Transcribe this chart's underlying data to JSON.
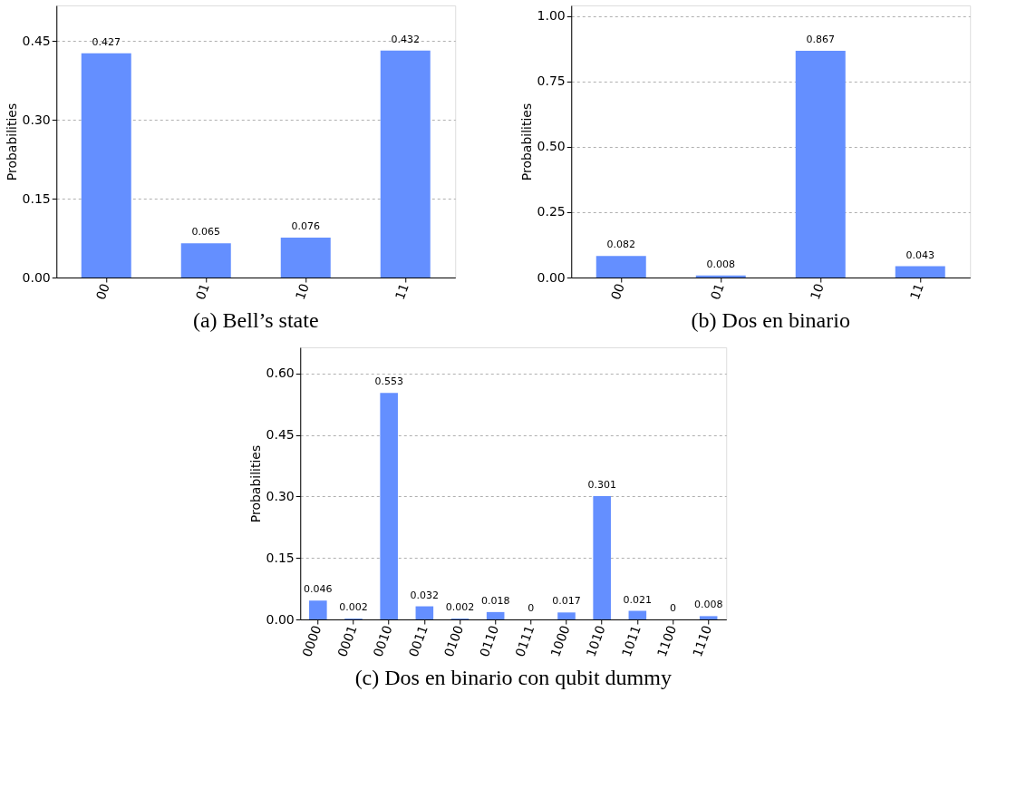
{
  "chart_data": [
    {
      "type": "bar",
      "title": "(a) Bell’s state",
      "ylabel": "Probabilities",
      "categories": [
        "00",
        "01",
        "10",
        "11"
      ],
      "series": [
        {
          "color": "#648fff",
          "values": [
            0.427,
            0.065,
            0.076,
            0.432
          ]
        }
      ],
      "ylim": [
        0,
        0.518
      ],
      "yticks": [
        {
          "value": 0,
          "label": "0.00"
        },
        0.15,
        {
          "value": 0.3,
          "label": "0.30"
        },
        0.45
      ],
      "grid": "y",
      "data_labels": true
    },
    {
      "type": "bar",
      "title": "(b) Dos en binario",
      "ylabel": "Probabilities",
      "categories": [
        "00",
        "01",
        "10",
        "11"
      ],
      "series": [
        {
          "color": "#648fff",
          "values": [
            0.082,
            0.008,
            0.867,
            0.043
          ]
        }
      ],
      "ylim": [
        0,
        1.04
      ],
      "yticks": [
        {
          "value": 0,
          "label": "0.00"
        },
        0.25,
        {
          "value": 0.5,
          "label": "0.50"
        },
        0.75,
        {
          "value": 1,
          "label": "1.00"
        }
      ],
      "grid": "y",
      "data_labels": true
    },
    {
      "type": "bar",
      "title": "(c) Dos en binario con qubit dummy",
      "ylabel": "Probabilities",
      "categories": [
        "0000",
        "0001",
        "0010",
        "0011",
        "0100",
        "0110",
        "0111",
        "1000",
        "1010",
        "1011",
        "1100",
        "1110"
      ],
      "series": [
        {
          "color": "#648fff",
          "values": [
            0.046,
            0.002,
            0.553,
            0.032,
            0.002,
            0.018,
            0,
            0.017,
            0.301,
            0.021,
            0,
            0.008
          ]
        }
      ],
      "ylim": [
        0,
        0.664
      ],
      "yticks": [
        {
          "value": 0,
          "label": "0.00"
        },
        0.15,
        {
          "value": 0.3,
          "label": "0.30"
        },
        0.45,
        {
          "value": 0.6,
          "label": "0.60"
        }
      ],
      "grid": "y",
      "data_labels": true
    }
  ]
}
